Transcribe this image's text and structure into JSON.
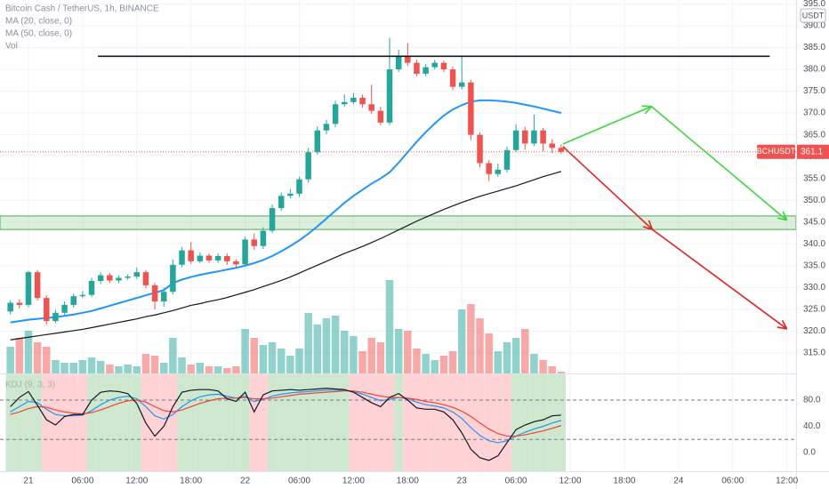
{
  "chart_data": [
    {
      "type": "candlestick",
      "title": "Bitcoin Cash / TetherUS, 1h, BINANCE",
      "x": [
        -2,
        -1,
        0,
        1,
        2,
        3,
        4,
        5,
        6,
        7,
        8,
        9,
        10,
        11,
        12,
        13,
        14,
        15,
        16,
        17,
        18,
        19,
        20,
        21,
        22,
        23,
        24,
        25,
        26,
        27,
        28,
        29,
        30,
        31,
        32,
        33,
        34,
        35,
        36,
        37,
        38,
        39,
        40,
        41,
        42,
        43,
        44,
        45,
        46,
        47,
        48,
        49,
        50,
        51,
        52,
        53,
        54,
        55,
        56,
        57,
        58,
        59
      ],
      "open": [
        324.5,
        326.5,
        326,
        333.5,
        327.6,
        322.3,
        324.2,
        326,
        328,
        328.3,
        331.5,
        332.8,
        331.6,
        332.2,
        332.5,
        333.5,
        330.5,
        326.8,
        329,
        335.2,
        338.5,
        336,
        337.3,
        336.2,
        337.2,
        336,
        335.3,
        341,
        339.5,
        343,
        348.2,
        351,
        351.5,
        354.8,
        361,
        366,
        367.5,
        372,
        372.5,
        373.5,
        372,
        370.5,
        367.8,
        380,
        383,
        381.5,
        379,
        380.5,
        381.5,
        380,
        376,
        377,
        365,
        358.5,
        356,
        357,
        361.5,
        366,
        363,
        366,
        363,
        362
      ],
      "high": [
        327,
        327.3,
        333.8,
        334,
        328.2,
        324.8,
        326.8,
        328.6,
        329.2,
        332.2,
        333.5,
        333.3,
        332.8,
        333,
        334.6,
        334,
        331,
        330,
        336.4,
        339.3,
        340.4,
        338,
        337.8,
        337.8,
        337.8,
        336.5,
        341.7,
        342.4,
        343.8,
        349,
        351.8,
        352.6,
        355.4,
        362,
        366.9,
        368.4,
        372.8,
        374.2,
        374.6,
        374.2,
        376.5,
        371.4,
        387.2,
        384.5,
        386,
        382.2,
        381.2,
        382.2,
        382,
        380.6,
        383.2,
        377.6,
        365.6,
        359.2,
        358.4,
        362.3,
        367.4,
        366.8,
        369.6,
        366.6,
        364,
        362.8
      ],
      "low": [
        323.8,
        325.2,
        325.5,
        327,
        321.5,
        321.8,
        323.6,
        325.4,
        327.6,
        327.8,
        330.8,
        331,
        331,
        331.8,
        332,
        329.8,
        325,
        325.6,
        328.4,
        334.6,
        335.4,
        335.6,
        335.6,
        335.6,
        335.2,
        334.6,
        334.8,
        338.6,
        338.8,
        342.5,
        347.6,
        350.4,
        350.8,
        354,
        360.4,
        365.2,
        366.8,
        371.4,
        372,
        371.2,
        369.8,
        367.2,
        367.2,
        379.4,
        380.8,
        378.4,
        378.4,
        380,
        379.4,
        375.2,
        375.4,
        363.8,
        357.5,
        354.4,
        355.4,
        356.4,
        361,
        361.6,
        362.4,
        361.2,
        360.8,
        360.6
      ],
      "close": [
        326.5,
        326,
        333.5,
        327.6,
        322.3,
        324.2,
        326,
        328,
        328.3,
        331.5,
        332.8,
        331.6,
        332.2,
        332.5,
        333.5,
        330.5,
        326.8,
        329,
        335.2,
        338.5,
        336,
        337.3,
        336.2,
        337.2,
        336,
        335.3,
        341,
        339.5,
        343,
        348.2,
        351,
        351.5,
        354.8,
        361,
        366,
        367.5,
        372,
        372.5,
        373.5,
        372,
        370.5,
        367.8,
        380,
        383,
        381.5,
        379,
        380.5,
        381.5,
        380,
        376,
        377,
        365,
        358.5,
        356,
        357,
        361.5,
        366,
        363,
        366,
        363,
        362,
        361.1
      ],
      "volume_name": "Vol",
      "volume": [
        30,
        40,
        48,
        35,
        30,
        15,
        12,
        12,
        15,
        18,
        14,
        10,
        8,
        10,
        8,
        22,
        20,
        12,
        40,
        18,
        10,
        12,
        8,
        8,
        6,
        8,
        50,
        40,
        32,
        35,
        28,
        20,
        28,
        68,
        55,
        62,
        65,
        48,
        42,
        25,
        40,
        35,
        105,
        50,
        48,
        28,
        22,
        15,
        20,
        25,
        72,
        78,
        62,
        45,
        25,
        35,
        40,
        50,
        22,
        15,
        8,
        2
      ],
      "volume_lim": [
        0,
        110
      ],
      "up_color": "#26a69a",
      "down_color": "#ef5350",
      "series": [
        {
          "name": "MA (20, close, 0)",
          "color": "#2196f3",
          "values": [
            322.0,
            322.3,
            322.6,
            322.8,
            323.0,
            323.2,
            323.5,
            323.8,
            324.2,
            324.6,
            325.2,
            325.8,
            326.4,
            327.0,
            327.6,
            328.2,
            328.8,
            329.4,
            331.0,
            331.8,
            332.4,
            332.9,
            333.3,
            333.7,
            334.1,
            334.5,
            335.0,
            335.6,
            336.3,
            337.2,
            338.3,
            339.5,
            340.8,
            342.3,
            344.0,
            345.8,
            347.6,
            349.4,
            351.0,
            352.4,
            353.8,
            355.0,
            356.4,
            358.6,
            361.0,
            363.4,
            365.6,
            367.6,
            369.4,
            370.8,
            371.8,
            372.6,
            372.9,
            372.9,
            372.8,
            372.6,
            372.3,
            371.9,
            371.5,
            371.0,
            370.5,
            370.0
          ]
        },
        {
          "name": "MA (50, close, 0)",
          "color": "#131722",
          "values": [
            318.0,
            318.3,
            318.6,
            318.9,
            319.2,
            319.5,
            319.8,
            320.1,
            320.4,
            320.8,
            321.2,
            321.6,
            322.0,
            322.4,
            322.8,
            323.3,
            323.7,
            324.2,
            324.7,
            325.3,
            325.9,
            326.3,
            326.8,
            327.2,
            327.7,
            328.3,
            328.9,
            329.5,
            330.2,
            330.9,
            331.6,
            332.4,
            333.3,
            334.2,
            335.1,
            336.0,
            336.9,
            337.8,
            338.6,
            339.4,
            340.3,
            341.2,
            342.2,
            343.2,
            344.2,
            345.2,
            346.1,
            347.0,
            347.9,
            348.7,
            349.5,
            350.2,
            350.9,
            351.5,
            352.1,
            352.7,
            353.3,
            354.0,
            354.7,
            355.4,
            356.0,
            356.6
          ]
        }
      ],
      "xlim": [
        -3.15,
        85.02
      ],
      "xticks": [
        {
          "value": 0,
          "label": "21"
        },
        {
          "value": 6,
          "label": "06:00"
        },
        {
          "value": 12,
          "label": "12:00"
        },
        {
          "value": 18,
          "label": "18:00"
        },
        {
          "value": 24,
          "label": "22"
        },
        {
          "value": 30,
          "label": "06:00"
        },
        {
          "value": 36,
          "label": "12:00"
        },
        {
          "value": 42,
          "label": "18:00"
        },
        {
          "value": 48,
          "label": "23"
        },
        {
          "value": 54,
          "label": "06:00"
        },
        {
          "value": 60,
          "label": "12:00"
        },
        {
          "value": 66,
          "label": "18:00"
        },
        {
          "value": 72,
          "label": "24"
        },
        {
          "value": 78,
          "label": "06:00"
        },
        {
          "value": 84,
          "label": "12:00"
        }
      ],
      "ylim": [
        310.3,
        395.9
      ],
      "yticks": [
        {
          "value": 315,
          "label": "315.0"
        },
        {
          "value": 320,
          "label": "320.0"
        },
        {
          "value": 325,
          "label": "325.0"
        },
        {
          "value": 330,
          "label": "330.0"
        },
        {
          "value": 335,
          "label": "335.0"
        },
        {
          "value": 340,
          "label": "340.0"
        },
        {
          "value": 345,
          "label": "345.0"
        },
        {
          "value": 350,
          "label": "350.0"
        },
        {
          "value": 355,
          "label": "355.0"
        },
        {
          "value": 360,
          "label": "360.0"
        },
        {
          "value": 365,
          "label": "365.0"
        },
        {
          "value": 370,
          "label": "370.0"
        },
        {
          "value": 375,
          "label": "375.0"
        },
        {
          "value": 380,
          "label": "380.0"
        },
        {
          "value": 385,
          "label": "385.0"
        },
        {
          "value": 390,
          "label": "390.0"
        },
        {
          "value": 395,
          "label": "395.0"
        }
      ],
      "grid": true,
      "currency": "USDT",
      "symbol": "BCHUSDT",
      "last_price": 361.1,
      "zone": [
        343.3,
        346.4
      ],
      "zone_color": "#4caf50",
      "drawings": [
        {
          "color": "#131722",
          "x": [
            7.7,
            82.1
          ],
          "y": [
            383,
            383
          ],
          "arrows": false
        },
        {
          "color": "#3ed63e",
          "x": [
            59.2,
            69.0,
            84.0
          ],
          "y": [
            362.9,
            371.5,
            345.4
          ],
          "arrows": true
        },
        {
          "color": "#e02424",
          "x": [
            59.2,
            69.1,
            84.0
          ],
          "y": [
            362.3,
            343.3,
            320.5
          ],
          "arrows": true
        }
      ]
    },
    {
      "type": "line",
      "title": "KDJ (9, 3, 3)",
      "series": [
        {
          "color": "#2196f3",
          "values": [
            62,
            70,
            78,
            76,
            66,
            58,
            56,
            56,
            57,
            64,
            73,
            80,
            84,
            86,
            82,
            70,
            56,
            51,
            58,
            70,
            79,
            85,
            88,
            89,
            86,
            83,
            86,
            78,
            81,
            86,
            89,
            91,
            92,
            93,
            94,
            95,
            95,
            95,
            93,
            89,
            84,
            79,
            81,
            84,
            82,
            77,
            73,
            71,
            68,
            62,
            52,
            38,
            26,
            18,
            15,
            18,
            25,
            31,
            36,
            40,
            45,
            49
          ]
        },
        {
          "color": "#f44336",
          "values": [
            58,
            62,
            67,
            70,
            69,
            65,
            62,
            60,
            59,
            61,
            65,
            70,
            75,
            79,
            80,
            77,
            70,
            64,
            62,
            65,
            70,
            75,
            79,
            82,
            83,
            83,
            84,
            82,
            82,
            83,
            85,
            87,
            89,
            90,
            91,
            92,
            93,
            94,
            94,
            92,
            89,
            86,
            84,
            84,
            83,
            81,
            78,
            76,
            73,
            69,
            63,
            55,
            45,
            36,
            29,
            25,
            25,
            27,
            30,
            33,
            37,
            41
          ]
        },
        {
          "color": "#131722",
          "values": [
            70,
            84,
            93,
            72,
            50,
            42,
            55,
            58,
            58,
            80,
            92,
            94,
            93,
            90,
            75,
            45,
            25,
            40,
            70,
            92,
            95,
            96,
            96,
            94,
            82,
            78,
            92,
            62,
            88,
            94,
            95,
            96,
            95,
            96,
            97,
            98,
            97,
            96,
            92,
            84,
            76,
            70,
            84,
            90,
            80,
            68,
            66,
            66,
            62,
            50,
            30,
            5,
            -8,
            -12,
            -5,
            15,
            35,
            42,
            47,
            50,
            56,
            57
          ]
        }
      ],
      "ylim": [
        -28.5,
        120.7
      ],
      "yticks": [
        {
          "value": 80,
          "label": "80.0"
        },
        {
          "value": 40,
          "label": "40.0"
        },
        {
          "value": 0,
          "label": "0.0"
        }
      ],
      "bands": [
        80,
        20
      ]
    }
  ]
}
